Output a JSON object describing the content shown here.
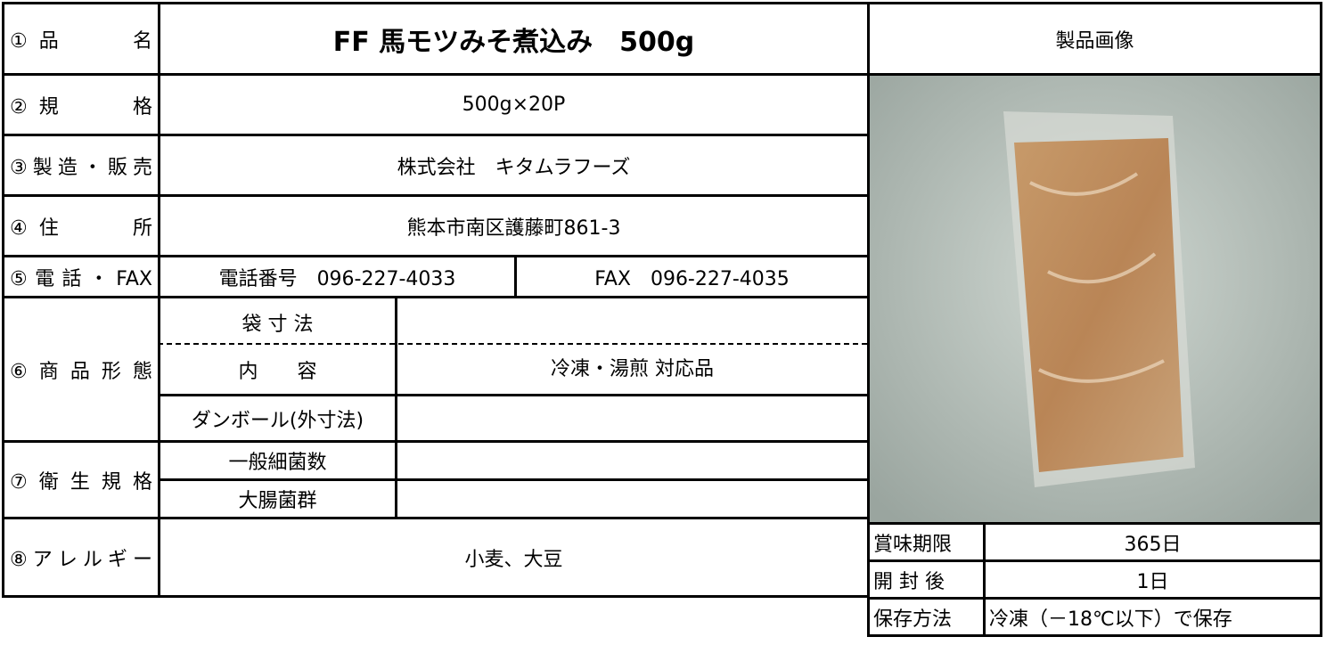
{
  "header": {
    "product_name_label": "①品　　名",
    "product_name": "FF 馬モツみそ煮込み　500g",
    "image_label": "製品画像"
  },
  "spec": {
    "label": "②規　　格",
    "value": "500g×20P"
  },
  "maker": {
    "label": "③製造・販売",
    "value": "株式会社　キタムラフーズ"
  },
  "address": {
    "label": "④住　　所",
    "value": "熊本市南区護藤町861-3"
  },
  "contact": {
    "label": "⑤電話・FAX",
    "phone": "電話番号　096-227-4033",
    "fax": "FAX　096-227-4035"
  },
  "form": {
    "label": "⑥商品形態",
    "bag_size": "袋 寸 法",
    "content_label": "内　　容",
    "content": "冷凍・湯煎 対応品",
    "carton": "ダンボール(外寸法)"
  },
  "hygiene": {
    "label": "⑦衛生規格",
    "bacteria": "一般細菌数",
    "coliform": "大腸菌群"
  },
  "allergy": {
    "label": "⑧アレルギー",
    "value": "小麦、大豆"
  },
  "shelf": {
    "rows": [
      [
        "賞味期限",
        "365日"
      ],
      [
        "開 封 後",
        "1日"
      ],
      [
        "保存方法",
        "冷凍（－18℃以下）で保存"
      ]
    ]
  }
}
